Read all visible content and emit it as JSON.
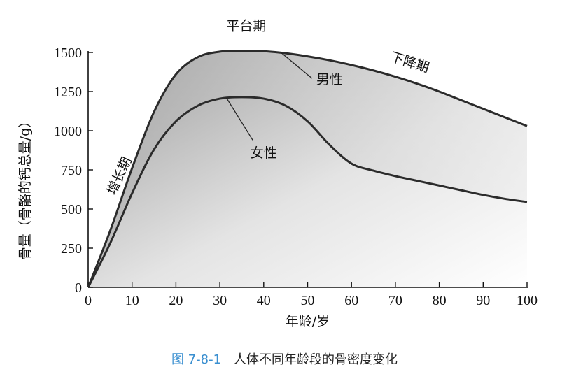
{
  "chart_data": {
    "type": "line",
    "title": "",
    "xlabel": "年龄/岁",
    "ylabel": "骨量（骨骼的钙总量/g）",
    "xlim": [
      0,
      100
    ],
    "ylim": [
      0,
      1500
    ],
    "x_ticks": [
      0,
      10,
      20,
      30,
      40,
      50,
      60,
      70,
      80,
      90,
      100
    ],
    "y_ticks": [
      0,
      250,
      500,
      750,
      1000,
      1250,
      1500
    ],
    "x_tick_labels": [
      "0",
      "10",
      "20",
      "30",
      "40",
      "50",
      "60",
      "70",
      "80",
      "90",
      "100"
    ],
    "y_tick_labels": [
      "0",
      "250",
      "500",
      "750",
      "1000",
      "1250",
      "1500"
    ],
    "series": [
      {
        "name": "男性",
        "x": [
          0,
          5,
          10,
          15,
          20,
          25,
          30,
          35,
          40,
          45,
          50,
          55,
          60,
          65,
          70,
          75,
          80,
          85,
          90,
          95,
          100
        ],
        "values": [
          0,
          360,
          760,
          1120,
          1360,
          1470,
          1505,
          1510,
          1508,
          1495,
          1475,
          1450,
          1420,
          1385,
          1345,
          1300,
          1250,
          1195,
          1140,
          1085,
          1030
        ]
      },
      {
        "name": "女性",
        "x": [
          0,
          5,
          10,
          15,
          20,
          25,
          30,
          35,
          40,
          45,
          50,
          55,
          60,
          65,
          70,
          75,
          80,
          85,
          90,
          95,
          100
        ],
        "values": [
          0,
          280,
          600,
          880,
          1060,
          1160,
          1205,
          1215,
          1205,
          1160,
          1060,
          910,
          790,
          745,
          710,
          680,
          650,
          620,
          590,
          565,
          545
        ]
      }
    ],
    "annotations": [
      {
        "text": "平台期",
        "x": 36,
        "y": 1640
      },
      {
        "text": "下降期",
        "x": 73,
        "y": 1410
      },
      {
        "text": "增长期",
        "x": 8,
        "y": 700
      },
      {
        "text": "男性",
        "x": 55,
        "y": 1300
      },
      {
        "text": "女性",
        "x": 40,
        "y": 830
      }
    ]
  },
  "caption": {
    "figure_number": "图 7-8-1",
    "text": "人体不同年龄段的骨密度变化"
  },
  "colors": {
    "line": "#2b2b2b",
    "caption_number": "#3a8fd0",
    "fill_dark": "#b0b0b0",
    "fill_light": "#ffffff"
  }
}
